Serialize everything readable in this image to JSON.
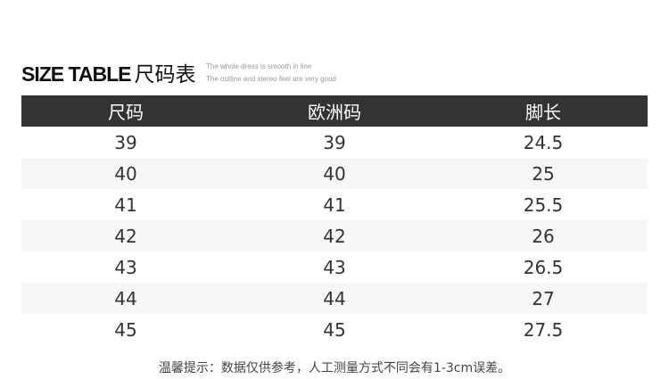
{
  "title": {
    "en": "SIZE TABLE",
    "cn": "尺码表",
    "sub1": "The whole dress is smooth in line",
    "sub2": "The outline and stereo feel are very good"
  },
  "table": {
    "headers": [
      "尺码",
      "欧洲码",
      "脚长"
    ],
    "rows": [
      [
        "39",
        "39",
        "24.5"
      ],
      [
        "40",
        "40",
        "25"
      ],
      [
        "41",
        "41",
        "25.5"
      ],
      [
        "42",
        "42",
        "26"
      ],
      [
        "43",
        "43",
        "26.5"
      ],
      [
        "44",
        "44",
        "27"
      ],
      [
        "45",
        "45",
        "27.5"
      ]
    ]
  },
  "note": "温馨提示：数据仅供参考，人工测量方式不同会有1-3cm误差。"
}
